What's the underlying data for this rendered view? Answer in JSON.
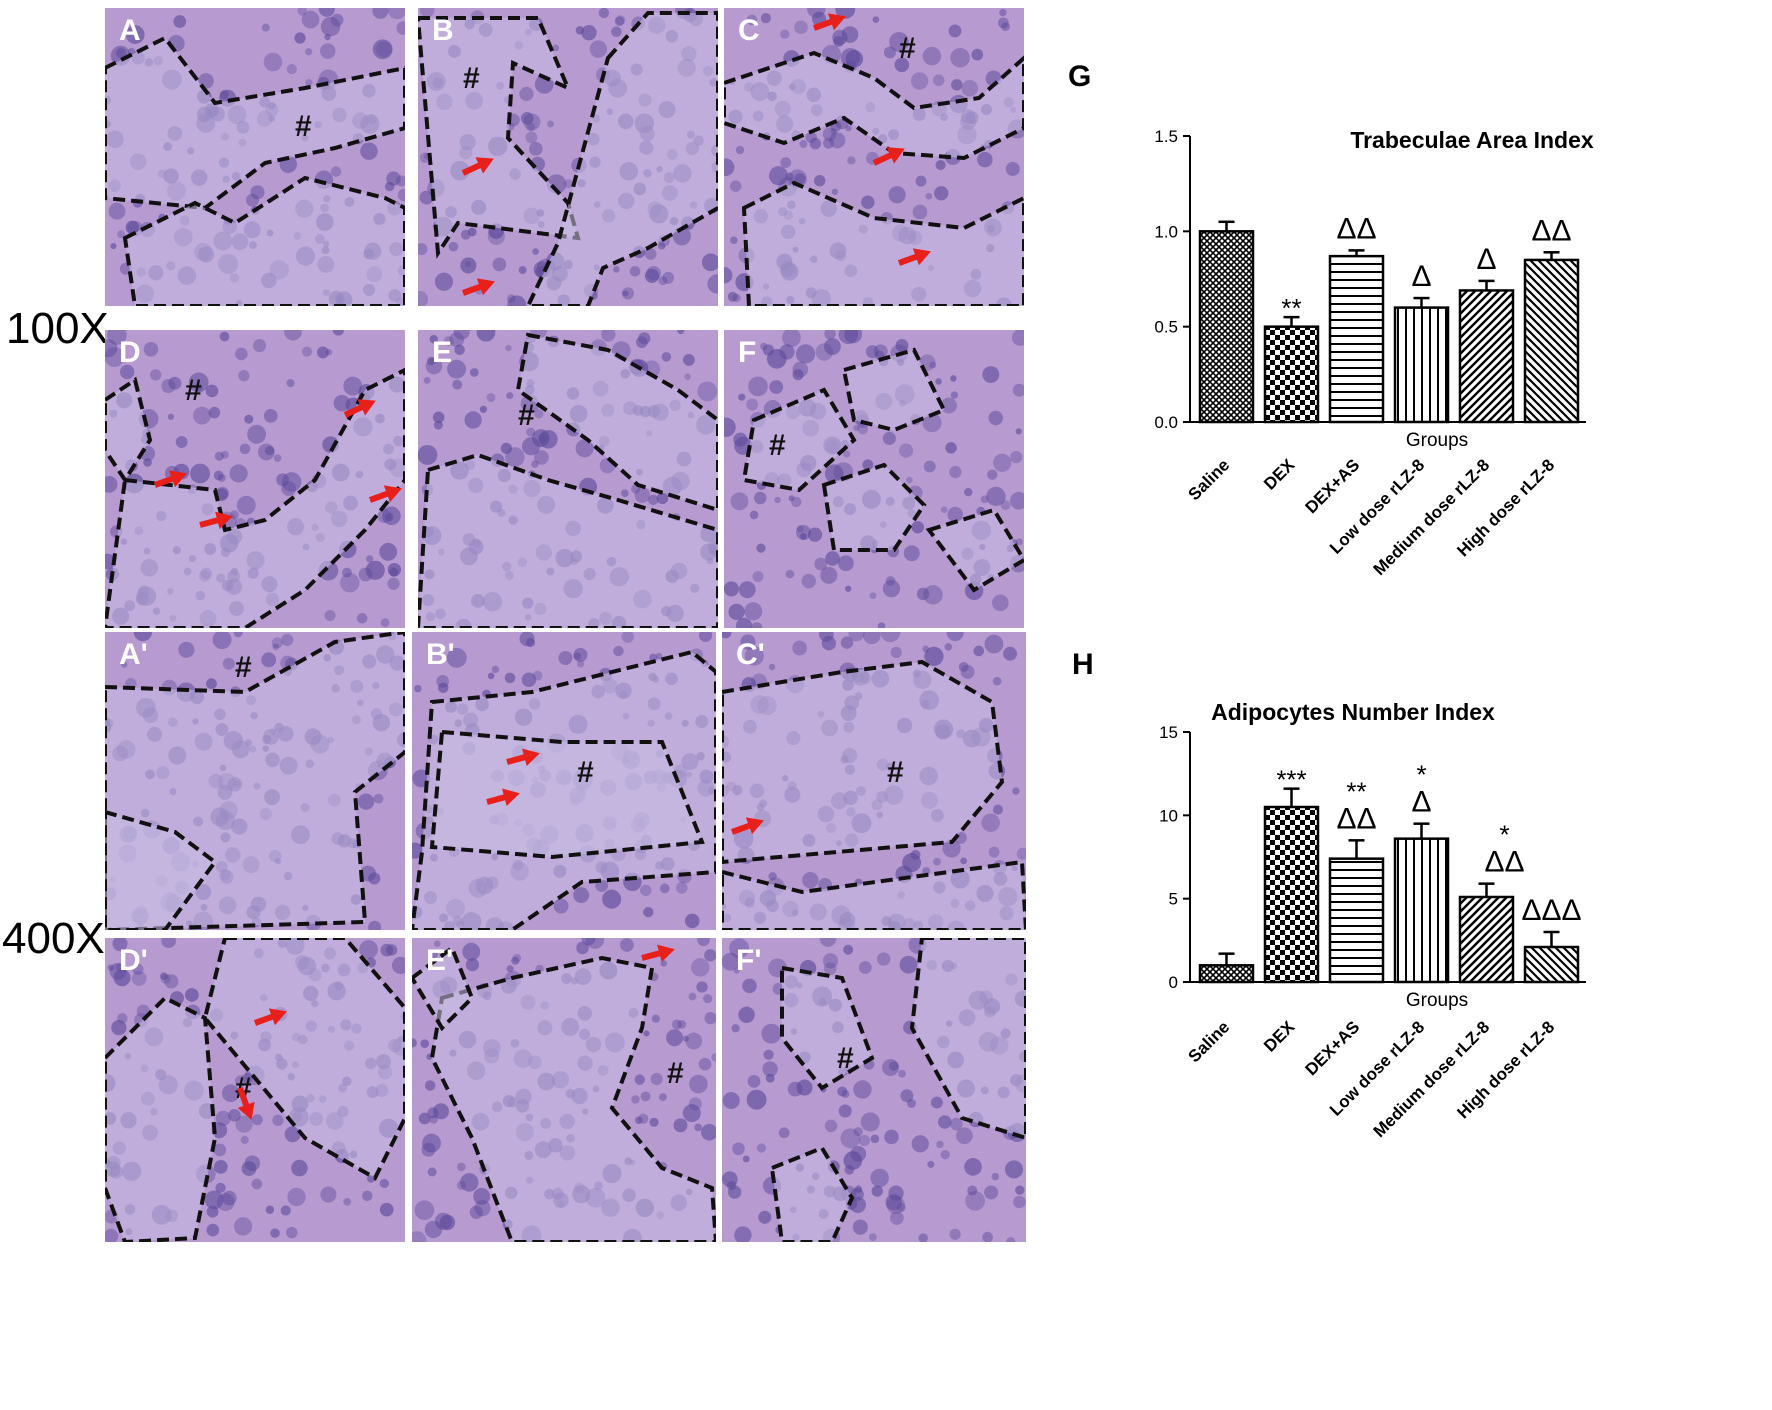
{
  "magnifications": {
    "low": "100X",
    "high": "400X"
  },
  "panels": {
    "low": [
      "A",
      "B",
      "C",
      "D",
      "E",
      "F"
    ],
    "high": [
      "A'",
      "B'",
      "C'",
      "D'",
      "E'",
      "F'"
    ],
    "marrow_mark": "#"
  },
  "colors": {
    "tissue_pink": "#b79ad0",
    "marrow_purple": "#5c4a9a",
    "bone_lilac": "#c9bde3",
    "arrow_red": "#e8201c",
    "outline": "#111111"
  },
  "chart_data": [
    {
      "type": "bar",
      "panel_label": "G",
      "title": "Trabeculae Area Index",
      "xlabel": "Groups",
      "ylabel": "",
      "ylim": [
        0,
        1.5
      ],
      "yticks": [
        "0.0",
        "0.5",
        "1.0",
        "1.5"
      ],
      "categories": [
        "Saline",
        "DEX",
        "DEX+AS",
        "Low dose rLZ-8",
        "Medium dose rLZ-8",
        "High dose rLZ-8"
      ],
      "values": [
        1.0,
        0.5,
        0.87,
        0.6,
        0.69,
        0.85
      ],
      "errors": [
        0.05,
        0.05,
        0.03,
        0.05,
        0.05,
        0.04
      ],
      "annotations": [
        {
          "category": "DEX",
          "lines": [
            "**"
          ]
        },
        {
          "category": "DEX+AS",
          "lines": [
            "ΔΔ"
          ]
        },
        {
          "category": "Low dose rLZ-8",
          "lines": [
            "Δ"
          ]
        },
        {
          "category": "Medium dose rLZ-8",
          "lines": [
            "Δ"
          ]
        },
        {
          "category": "High dose rLZ-8",
          "lines": [
            "ΔΔ"
          ]
        }
      ],
      "patterns": [
        "crosshatch",
        "checker",
        "horizontal",
        "vertical",
        "diagonal-right",
        "diagonal-left"
      ]
    },
    {
      "type": "bar",
      "panel_label": "H",
      "title": "Adipocytes  Number Index",
      "xlabel": "Groups",
      "ylabel": "",
      "ylim": [
        0,
        15
      ],
      "yticks": [
        "0",
        "5",
        "10",
        "15"
      ],
      "categories": [
        "Saline",
        "DEX",
        "DEX+AS",
        "Low dose rLZ-8",
        "Medium dose rLZ-8",
        "High dose rLZ-8"
      ],
      "values": [
        1.0,
        10.5,
        7.4,
        8.6,
        5.1,
        2.1
      ],
      "errors": [
        0.7,
        1.1,
        1.1,
        0.9,
        0.8,
        0.9
      ],
      "annotations": [
        {
          "category": "DEX",
          "lines": [
            "***"
          ]
        },
        {
          "category": "DEX+AS",
          "lines": [
            "**",
            "ΔΔ"
          ]
        },
        {
          "category": "Low dose rLZ-8",
          "lines": [
            "*",
            "Δ"
          ]
        },
        {
          "category": "Medium dose rLZ-8",
          "lines": [
            "*",
            "ΔΔ"
          ]
        },
        {
          "category": "High dose rLZ-8",
          "lines": [
            "ΔΔΔ"
          ]
        }
      ],
      "patterns": [
        "crosshatch",
        "checker",
        "horizontal",
        "vertical",
        "diagonal-right",
        "diagonal-left"
      ]
    }
  ]
}
